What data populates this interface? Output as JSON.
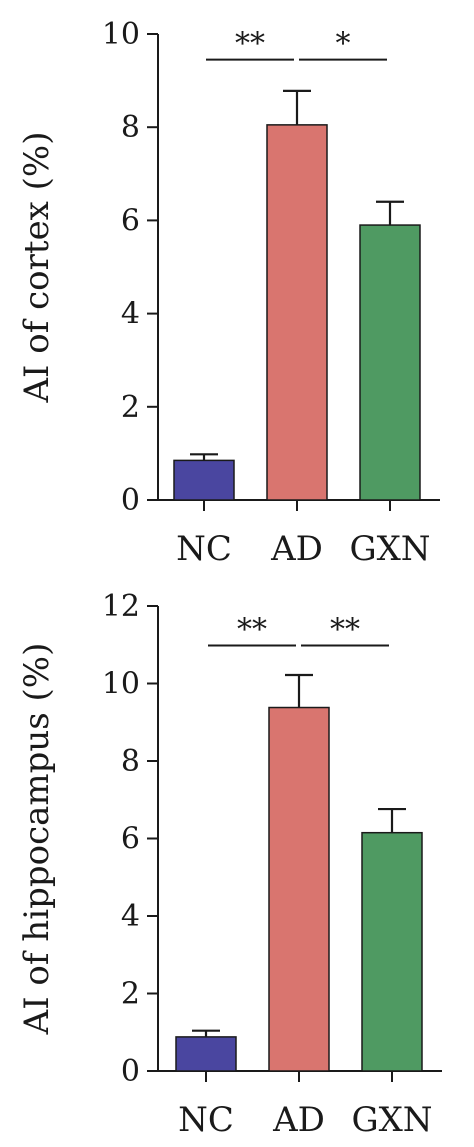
{
  "chart_data": [
    {
      "type": "bar",
      "categories": [
        "NC",
        "AD",
        "GXN"
      ],
      "values": [
        0.85,
        8.05,
        5.9
      ],
      "error_upper": [
        0.98,
        8.78,
        6.4
      ],
      "colors": [
        "#4a46a0",
        "#d9756f",
        "#4f9a62"
      ],
      "ylabel": "AI of cortex (%)",
      "ylim": [
        0,
        10
      ],
      "yticks": [
        "0",
        "2",
        "4",
        "6",
        "8",
        "10"
      ],
      "significance": [
        {
          "from": 0,
          "to": 1,
          "label": "**",
          "y": 9.45
        },
        {
          "from": 1,
          "to": 2,
          "label": "*",
          "y": 9.45
        }
      ]
    },
    {
      "type": "bar",
      "categories": [
        "NC",
        "AD",
        "GXN"
      ],
      "values": [
        0.88,
        9.38,
        6.15
      ],
      "error_upper": [
        1.04,
        10.22,
        6.76
      ],
      "colors": [
        "#4a46a0",
        "#d9756f",
        "#4f9a62"
      ],
      "ylabel": "AI of hippocampus (%)",
      "ylim": [
        0,
        12
      ],
      "yticks": [
        "0",
        "2",
        "4",
        "6",
        "8",
        "10",
        "12"
      ],
      "significance": [
        {
          "from": 0,
          "to": 1,
          "label": "**",
          "y": 10.98
        },
        {
          "from": 1,
          "to": 2,
          "label": "**",
          "y": 10.98
        }
      ]
    }
  ]
}
